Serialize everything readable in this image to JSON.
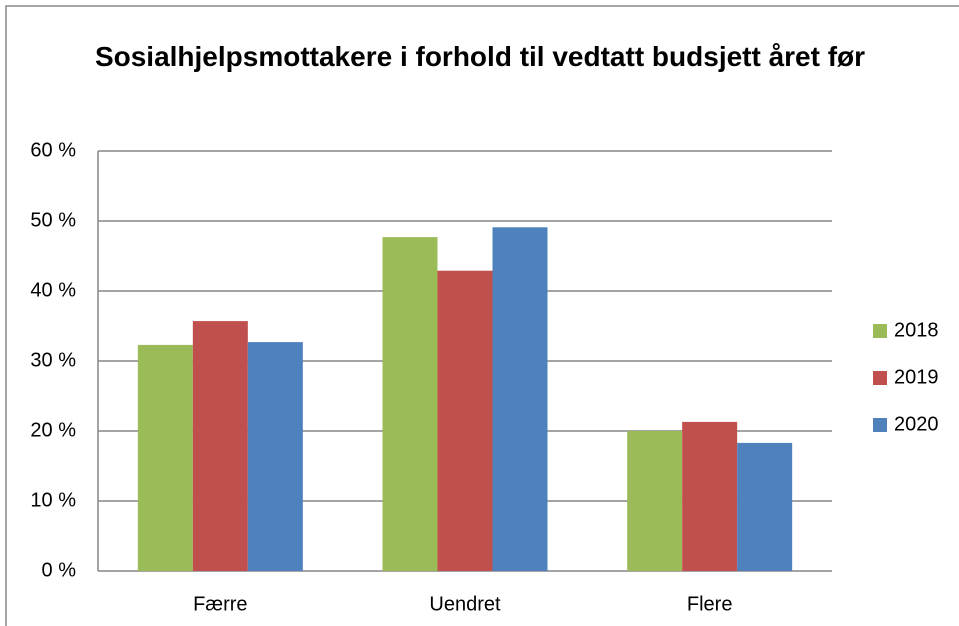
{
  "chart_data": {
    "type": "bar",
    "title": "Sosialhjelpsmottakere i forhold til vedtatt budsjett året før",
    "categories": [
      "Færre",
      "Uendret",
      "Flere"
    ],
    "series": [
      {
        "name": "2018",
        "color": "#9bbb59",
        "values": [
          32.3,
          47.7,
          20.0
        ]
      },
      {
        "name": "2019",
        "color": "#c0504d",
        "values": [
          35.7,
          42.9,
          21.3
        ]
      },
      {
        "name": "2020",
        "color": "#4f81bd",
        "values": [
          32.7,
          49.1,
          18.3
        ]
      }
    ],
    "ylim": [
      0,
      60
    ],
    "yticks": [
      {
        "value": 0,
        "label": "0 %"
      },
      {
        "value": 10,
        "label": "10 %"
      },
      {
        "value": 20,
        "label": "20 %"
      },
      {
        "value": 30,
        "label": "30 %"
      },
      {
        "value": 40,
        "label": "40 %"
      },
      {
        "value": 50,
        "label": "50 %"
      },
      {
        "value": 60,
        "label": "60 %"
      }
    ],
    "grid": true,
    "legend": "right"
  }
}
